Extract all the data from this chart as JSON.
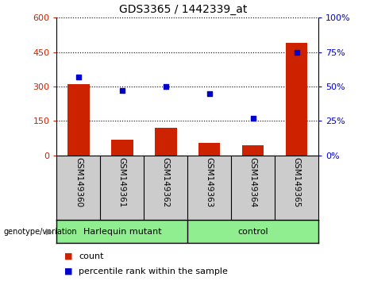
{
  "title": "GDS3365 / 1442339_at",
  "samples": [
    "GSM149360",
    "GSM149361",
    "GSM149362",
    "GSM149363",
    "GSM149364",
    "GSM149365"
  ],
  "counts": [
    310,
    68,
    120,
    55,
    45,
    490
  ],
  "percentiles": [
    57,
    47,
    50,
    45,
    27,
    75
  ],
  "left_ylim": [
    0,
    600
  ],
  "left_yticks": [
    0,
    150,
    300,
    450,
    600
  ],
  "right_ylim": [
    0,
    100
  ],
  "right_yticks": [
    0,
    25,
    50,
    75,
    100
  ],
  "bar_color": "#cc2200",
  "dot_color": "#0000cc",
  "bar_width": 0.5,
  "group_label_prefix": "genotype/variation",
  "legend_count_label": "count",
  "legend_percentile_label": "percentile rank within the sample",
  "left_axis_color": "#cc2200",
  "right_axis_color": "#0000cc",
  "bg_plot": "#ffffff",
  "bg_xticklabels": "#cccccc",
  "bg_group_bar": "#90ee90",
  "fig_width": 4.61,
  "fig_height": 3.54,
  "dpi": 100
}
